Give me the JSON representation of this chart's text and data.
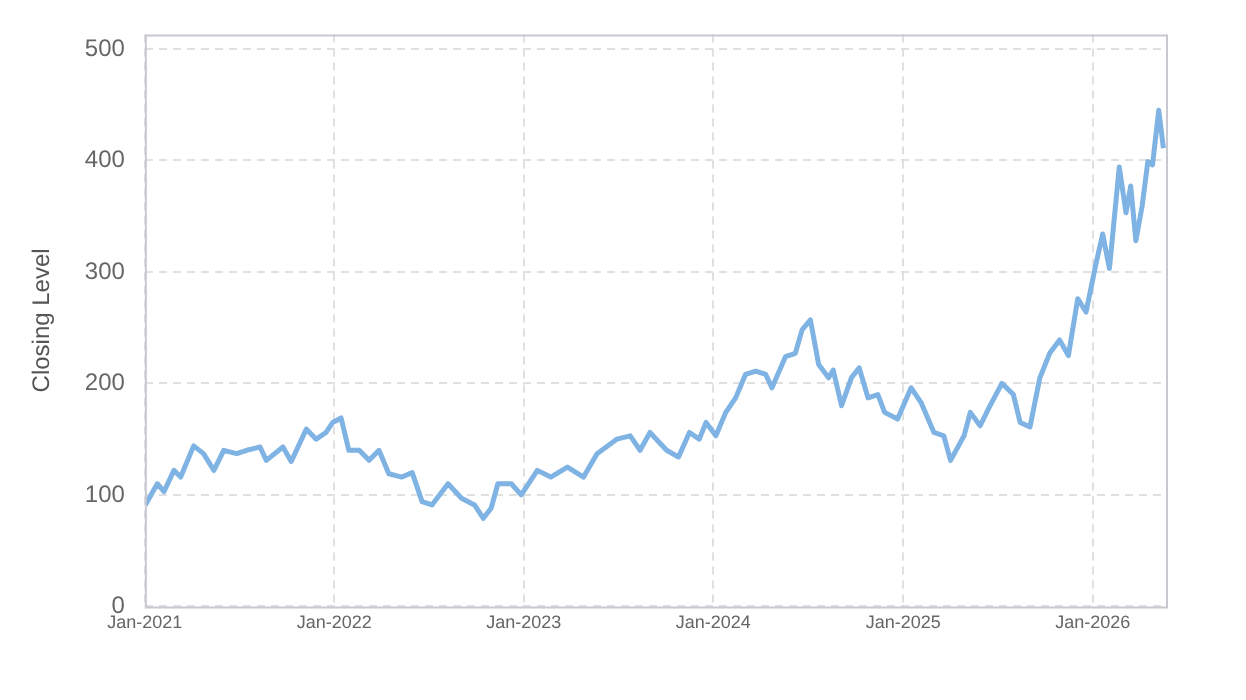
{
  "chart_data": {
    "type": "line",
    "ylabel": "Closing Level",
    "x": [
      "2021-01-02",
      "2021-01-25",
      "2021-02-07",
      "2021-02-26",
      "2021-03-11",
      "2021-04-05",
      "2021-04-24",
      "2021-05-14",
      "2021-06-02",
      "2021-06-27",
      "2021-07-16",
      "2021-08-11",
      "2021-08-23",
      "2021-09-24",
      "2021-10-10",
      "2021-11-08",
      "2021-11-27",
      "2021-12-16",
      "2021-12-29",
      "2022-01-14",
      "2022-01-29",
      "2022-02-18",
      "2022-03-09",
      "2022-03-28",
      "2022-04-16",
      "2022-05-11",
      "2022-05-31",
      "2022-06-19",
      "2022-07-08",
      "2022-08-08",
      "2022-09-03",
      "2022-09-28",
      "2022-10-15",
      "2022-10-30",
      "2022-11-12",
      "2022-12-08",
      "2022-12-27",
      "2023-01-27",
      "2023-02-22",
      "2023-03-26",
      "2023-04-26",
      "2023-05-22",
      "2023-06-29",
      "2023-07-25",
      "2023-08-13",
      "2023-09-01",
      "2023-10-03",
      "2023-10-26",
      "2023-11-16",
      "2023-12-05",
      "2023-12-18",
      "2024-01-06",
      "2024-01-25",
      "2024-02-13",
      "2024-03-03",
      "2024-03-23",
      "2024-04-11",
      "2024-04-23",
      "2024-05-19",
      "2024-06-07",
      "2024-06-20",
      "2024-07-06",
      "2024-07-22",
      "2024-08-10",
      "2024-08-19",
      "2024-09-04",
      "2024-09-23",
      "2024-10-08",
      "2024-10-25",
      "2024-11-13",
      "2024-11-26",
      "2024-12-21",
      "2025-01-16",
      "2025-02-04",
      "2025-03-01",
      "2025-03-20",
      "2025-04-02",
      "2025-04-28",
      "2025-05-10",
      "2025-05-29",
      "2025-06-17",
      "2025-07-10",
      "2025-08-01",
      "2025-08-14",
      "2025-09-02",
      "2025-09-21",
      "2025-10-10",
      "2025-10-29",
      "2025-11-15",
      "2025-12-03",
      "2025-12-19",
      "2026-01-07",
      "2026-01-20",
      "2026-02-02",
      "2026-02-21",
      "2026-03-06",
      "2026-03-15",
      "2026-03-25",
      "2026-04-06",
      "2026-04-17",
      "2026-04-26",
      "2026-05-08",
      "2026-05-17"
    ],
    "series": [
      {
        "color": "#7eb3e3",
        "values": [
          91,
          110,
          103,
          122,
          116,
          144,
          137,
          122,
          140,
          137,
          140,
          143,
          131,
          143,
          130,
          159,
          150,
          156,
          165,
          169,
          140,
          140,
          131,
          140,
          119,
          116,
          120,
          94,
          91,
          110,
          97,
          91,
          79,
          88,
          110,
          110,
          100,
          122,
          116,
          125,
          116,
          137,
          150,
          153,
          140,
          156,
          140,
          134,
          156,
          150,
          165,
          153,
          174,
          187,
          208,
          211,
          208,
          196,
          224,
          227,
          248,
          257,
          217,
          205,
          212,
          180,
          205,
          214,
          187,
          190,
          174,
          168,
          196,
          183,
          156,
          153,
          131,
          153,
          174,
          162,
          180,
          200,
          190,
          165,
          161,
          205,
          227,
          239,
          225,
          276,
          264,
          307,
          334,
          303,
          394,
          353,
          377,
          328,
          359,
          399,
          396,
          445,
          411
        ]
      }
    ],
    "xlim": [
      "2021-01-01",
      "2026-05-22"
    ],
    "xticks": [
      {
        "value": "2021-01-01",
        "label": "Jan-2021"
      },
      {
        "value": "2022-01-01",
        "label": "Jan-2022"
      },
      {
        "value": "2023-01-01",
        "label": "Jan-2023"
      },
      {
        "value": "2024-01-01",
        "label": "Jan-2024"
      },
      {
        "value": "2025-01-01",
        "label": "Jan-2025"
      },
      {
        "value": "2026-01-01",
        "label": "Jan-2026"
      }
    ],
    "ylim": [
      0,
      513
    ],
    "yticks": [
      0,
      100,
      200,
      300,
      400,
      500
    ],
    "grid": true,
    "marker": "none",
    "line_style": "solid"
  }
}
